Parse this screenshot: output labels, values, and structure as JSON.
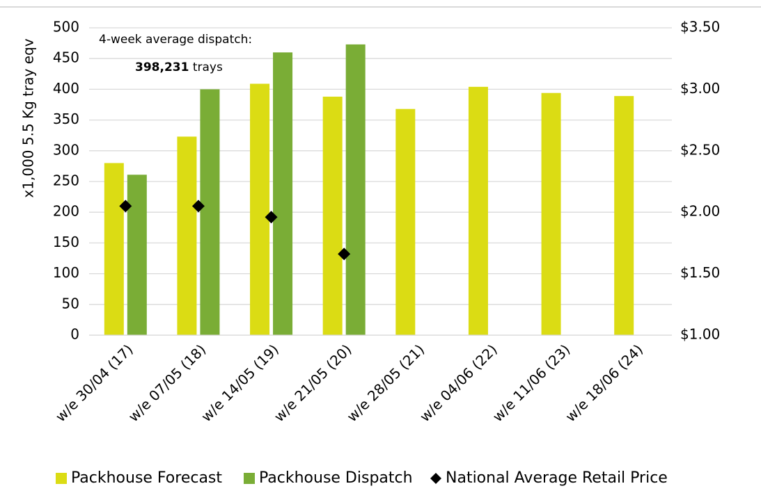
{
  "chart_data": {
    "type": "bar",
    "ylabel": "x1,000 5.5 Kg tray eqv",
    "annotation": {
      "line1": "4-week average dispatch:",
      "value": "398,231",
      "unit": "trays"
    },
    "categories": [
      "w/e 30/04 (17)",
      "w/e 07/05 (18)",
      "w/e 14/05 (19)",
      "w/e 21/05 (20)",
      "w/e 28/05 (21)",
      "w/e 04/06 (22)",
      "w/e 11/06 (23)",
      "w/e 18/06 (24)"
    ],
    "series": [
      {
        "name": "Packhouse Forecast",
        "type": "bar",
        "color": "#dbdc14",
        "values": [
          280,
          323,
          409,
          388,
          368,
          404,
          394,
          389
        ]
      },
      {
        "name": "Packhouse Dispatch",
        "type": "bar",
        "color": "#7aad36",
        "values": [
          261,
          400,
          460,
          473,
          null,
          null,
          null,
          null
        ]
      },
      {
        "name": "National Average Retail Price",
        "type": "scatter",
        "axis": "y2",
        "color": "#000000",
        "values": [
          2.05,
          2.05,
          1.96,
          1.66,
          null,
          null,
          null,
          null
        ]
      }
    ],
    "ylim": [
      0,
      500
    ],
    "yticks": [
      0,
      50,
      100,
      150,
      200,
      250,
      300,
      350,
      400,
      450,
      500
    ],
    "y2lim": [
      1,
      3.5
    ],
    "y2ticks": [
      {
        "value": 1,
        "label": "$1.00"
      },
      {
        "value": 1.5,
        "label": "$1.50"
      },
      {
        "value": 2,
        "label": "$2.00"
      },
      {
        "value": 2.5,
        "label": "$2.50"
      },
      {
        "value": 3,
        "label": "$3.00"
      },
      {
        "value": 3.5,
        "label": "$3.50"
      }
    ],
    "grid": true,
    "legend": "bottom"
  }
}
